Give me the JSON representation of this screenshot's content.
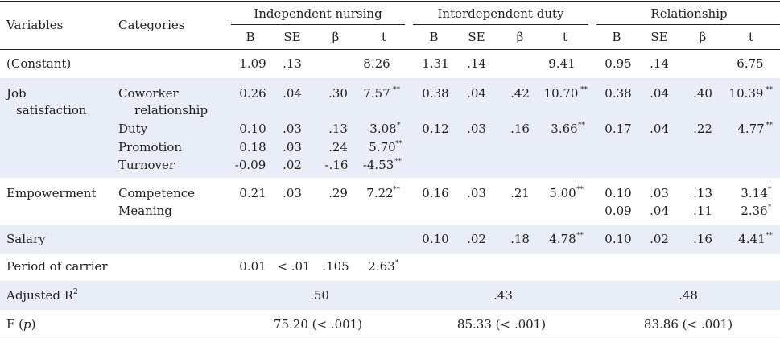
{
  "headers": {
    "variables": "Variables",
    "categories": "Categories",
    "groups": [
      "Independent nursing",
      "Interdependent duty",
      "Relationship"
    ],
    "sub": [
      "B",
      "SE",
      "β",
      "t"
    ]
  },
  "rows": {
    "constant": {
      "label": "(Constant)",
      "g1": {
        "B": "1.09",
        "SE": ".13",
        "beta": "",
        "t": "8.26"
      },
      "g2": {
        "B": "1.31",
        "SE": ".14",
        "beta": "",
        "t": "9.41"
      },
      "g3": {
        "B": "0.95",
        "SE": ".14",
        "beta": "",
        "t": "6.75"
      }
    },
    "job": {
      "label_line1": "Job",
      "label_line2": "satisfaction",
      "coworker": {
        "cat_line1": "Coworker",
        "cat_line2": "relationship",
        "g1": {
          "B": "0.26",
          "SE": ".04",
          "beta": ".30",
          "t": "7.57",
          "sig": "**"
        },
        "g2": {
          "B": "0.38",
          "SE": ".04",
          "beta": ".42",
          "t": "10.70",
          "sig": "**"
        },
        "g3": {
          "B": "0.38",
          "SE": ".04",
          "beta": ".40",
          "t": "10.39",
          "sig": "**"
        }
      },
      "duty": {
        "cat": "Duty",
        "g1": {
          "B": "0.10",
          "SE": ".03",
          "beta": ".13",
          "t": "3.08",
          "sig": "*"
        },
        "g2": {
          "B": "0.12",
          "SE": ".03",
          "beta": ".16",
          "t": "3.66",
          "sig": "**"
        },
        "g3": {
          "B": "0.17",
          "SE": ".04",
          "beta": ".22",
          "t": "4.77",
          "sig": "**"
        }
      },
      "promotion": {
        "cat": "Promotion",
        "g1": {
          "B": "0.18",
          "SE": ".03",
          "beta": ".24",
          "t": "5.70",
          "sig": "**"
        }
      },
      "turnover": {
        "cat": "Turnover",
        "g1": {
          "B": "-0.09",
          "SE": ".02",
          "beta": "-.16",
          "t": "-4.53",
          "sig": "**"
        }
      }
    },
    "empowerment": {
      "label": "Empowerment",
      "competence": {
        "cat": "Competence",
        "g1": {
          "B": "0.21",
          "SE": ".03",
          "beta": ".29",
          "t": "7.22",
          "sig": "**"
        },
        "g2": {
          "B": "0.16",
          "SE": ".03",
          "beta": ".21",
          "t": "5.00",
          "sig": "**"
        },
        "g3": {
          "B": "0.10",
          "SE": ".03",
          "beta": ".13",
          "t": "3.14",
          "sig": "*"
        }
      },
      "meaning": {
        "cat": "Meaning",
        "g3": {
          "B": "0.09",
          "SE": ".04",
          "beta": ".11",
          "t": "2.36",
          "sig": "*"
        }
      }
    },
    "salary": {
      "label": "Salary",
      "g2": {
        "B": "0.10",
        "SE": ".02",
        "beta": ".18",
        "t": "4.78",
        "sig": "**"
      },
      "g3": {
        "B": "0.10",
        "SE": ".02",
        "beta": ".16",
        "t": "4.41",
        "sig": "**"
      }
    },
    "period": {
      "label": "Period of carrier",
      "g1": {
        "B": "0.01",
        "SE": "< .01",
        "beta": ".105",
        "t": "2.63",
        "sig": "*"
      }
    },
    "adjusted": {
      "label": "Adjusted R",
      "label_sup": "2",
      "g1": ".50",
      "g2": ".43",
      "g3": ".48"
    },
    "f": {
      "label_pre": "F (",
      "label_p": "p",
      "label_post": ")",
      "g1": "75.20 (< .001)",
      "g2": "85.33 (< .001)",
      "g3": "83.86 (< .001)"
    }
  }
}
